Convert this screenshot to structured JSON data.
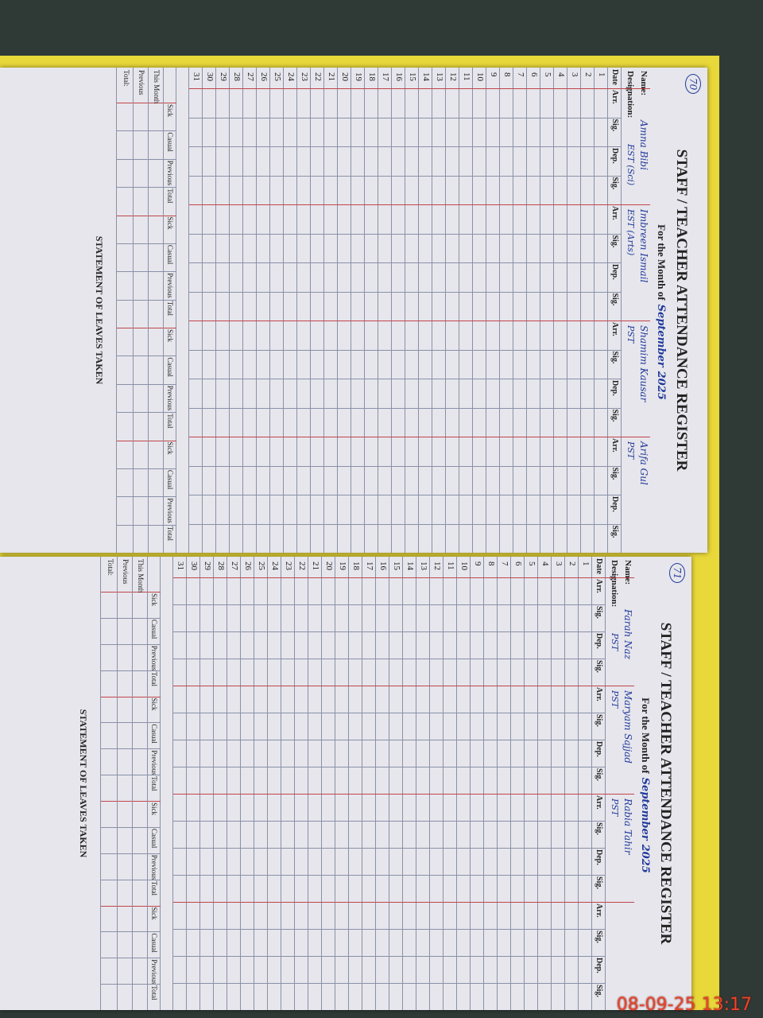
{
  "pages": [
    {
      "page_number": "70",
      "title": "STAFF / TEACHER ATTENDANCE REGISTER",
      "month_label": "For the Month of",
      "month": "September",
      "year": "2025",
      "name_label": "Name:",
      "designation_label": "Designation:",
      "staff": [
        {
          "name": "Amna Bibi",
          "designation": "EST (Sci)"
        },
        {
          "name": "Imbreen Ismail",
          "designation": "EST (Arts)"
        },
        {
          "name": "Shamim Kausar",
          "designation": "PST"
        },
        {
          "name": "Arifa Gul",
          "designation": "PST"
        }
      ]
    },
    {
      "page_number": "71",
      "title": "STAFF / TEACHER ATTENDANCE REGISTER",
      "month_label": "For the Month of",
      "month": "September",
      "year": "2025",
      "name_label": "Name:",
      "designation_label": "Designation:",
      "staff": [
        {
          "name": "Farah Naz",
          "designation": "PST"
        },
        {
          "name": "Maryam Sajjad",
          "designation": "PST"
        },
        {
          "name": "Rabia Tahir",
          "designation": "PST"
        }
      ]
    }
  ],
  "table": {
    "date_header": "Date",
    "columns": [
      "Arr.",
      "Sig.",
      "Dep.",
      "Sig."
    ],
    "dates": [
      1,
      2,
      3,
      4,
      5,
      6,
      7,
      8,
      9,
      10,
      11,
      12,
      13,
      14,
      15,
      16,
      17,
      18,
      19,
      20,
      21,
      22,
      23,
      24,
      25,
      26,
      27,
      28,
      29,
      30,
      31
    ]
  },
  "statement": {
    "title": "STATEMENT OF LEAVES TAKEN",
    "columns": [
      "Sick",
      "Casual",
      "Previous",
      "Total"
    ],
    "rows": [
      "This Month",
      "Previous",
      "Total:"
    ]
  },
  "timestamp": "08-09-25 13:17"
}
